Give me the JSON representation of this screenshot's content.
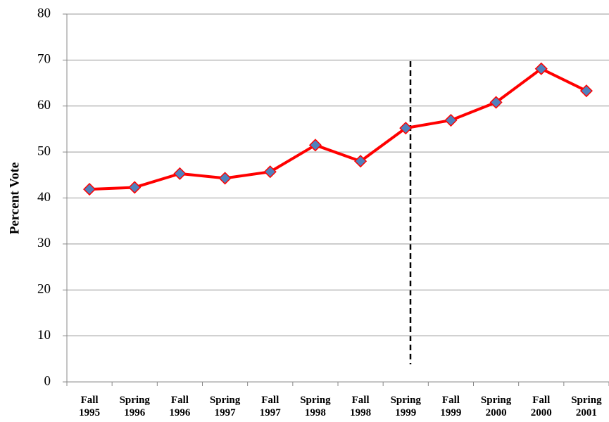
{
  "chart_data": {
    "type": "line",
    "y_label": "Percent Vote",
    "categories": [
      "Fall 1995",
      "Spring 1996",
      "Fall 1996",
      "Spring 1997",
      "Fall 1997",
      "Spring 1998",
      "Fall 1998",
      "Spring 1999",
      "Fall 1999",
      "Spring 2000",
      "Fall 2000",
      "Spring 2001"
    ],
    "series": [
      {
        "color": "#ff0000",
        "marker_color": "#4f81bd",
        "values": [
          41.9,
          42.3,
          45.3,
          44.3,
          45.7,
          51.5,
          48.0,
          55.2,
          56.9,
          60.8,
          68.1,
          63.3
        ]
      }
    ],
    "ylim": [
      0,
      80
    ],
    "yticks": [
      0,
      10,
      20,
      30,
      40,
      50,
      60,
      70,
      80
    ],
    "grid": true
  }
}
